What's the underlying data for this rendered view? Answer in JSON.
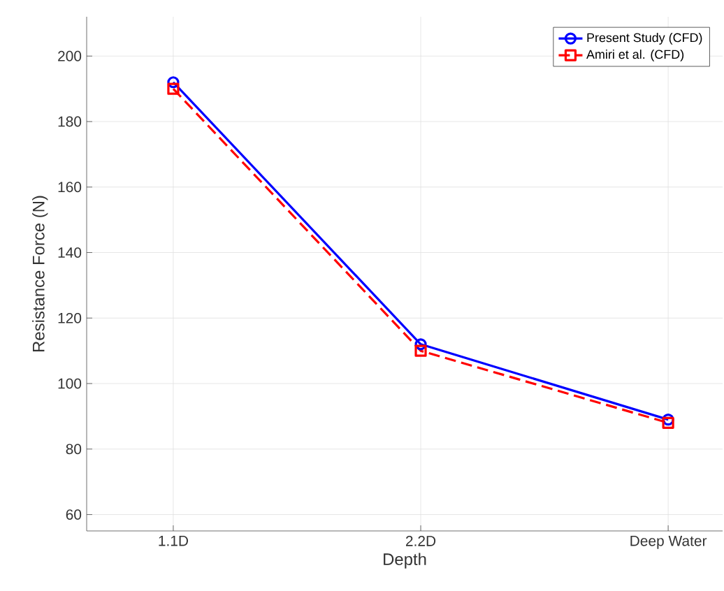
{
  "chart_data": {
    "type": "line",
    "xlabel": "Depth",
    "ylabel": "Resistance Force (N)",
    "categories": [
      "1.1D",
      "2.2D",
      "Deep Water"
    ],
    "series": [
      {
        "name": "Present Study (CFD)",
        "color": "#0000ff",
        "values": [
          192,
          112,
          89
        ],
        "marker": "circle",
        "line_style": "solid"
      },
      {
        "name": "Amiri et al. (CFD)",
        "color": "#ff0000",
        "values": [
          190,
          110,
          88
        ],
        "marker": "square",
        "line_style": "dashed"
      }
    ],
    "ylim": [
      55,
      212
    ],
    "yticks": [
      60,
      80,
      100,
      120,
      140,
      160,
      180,
      200
    ],
    "grid": true,
    "legend": "top right"
  }
}
